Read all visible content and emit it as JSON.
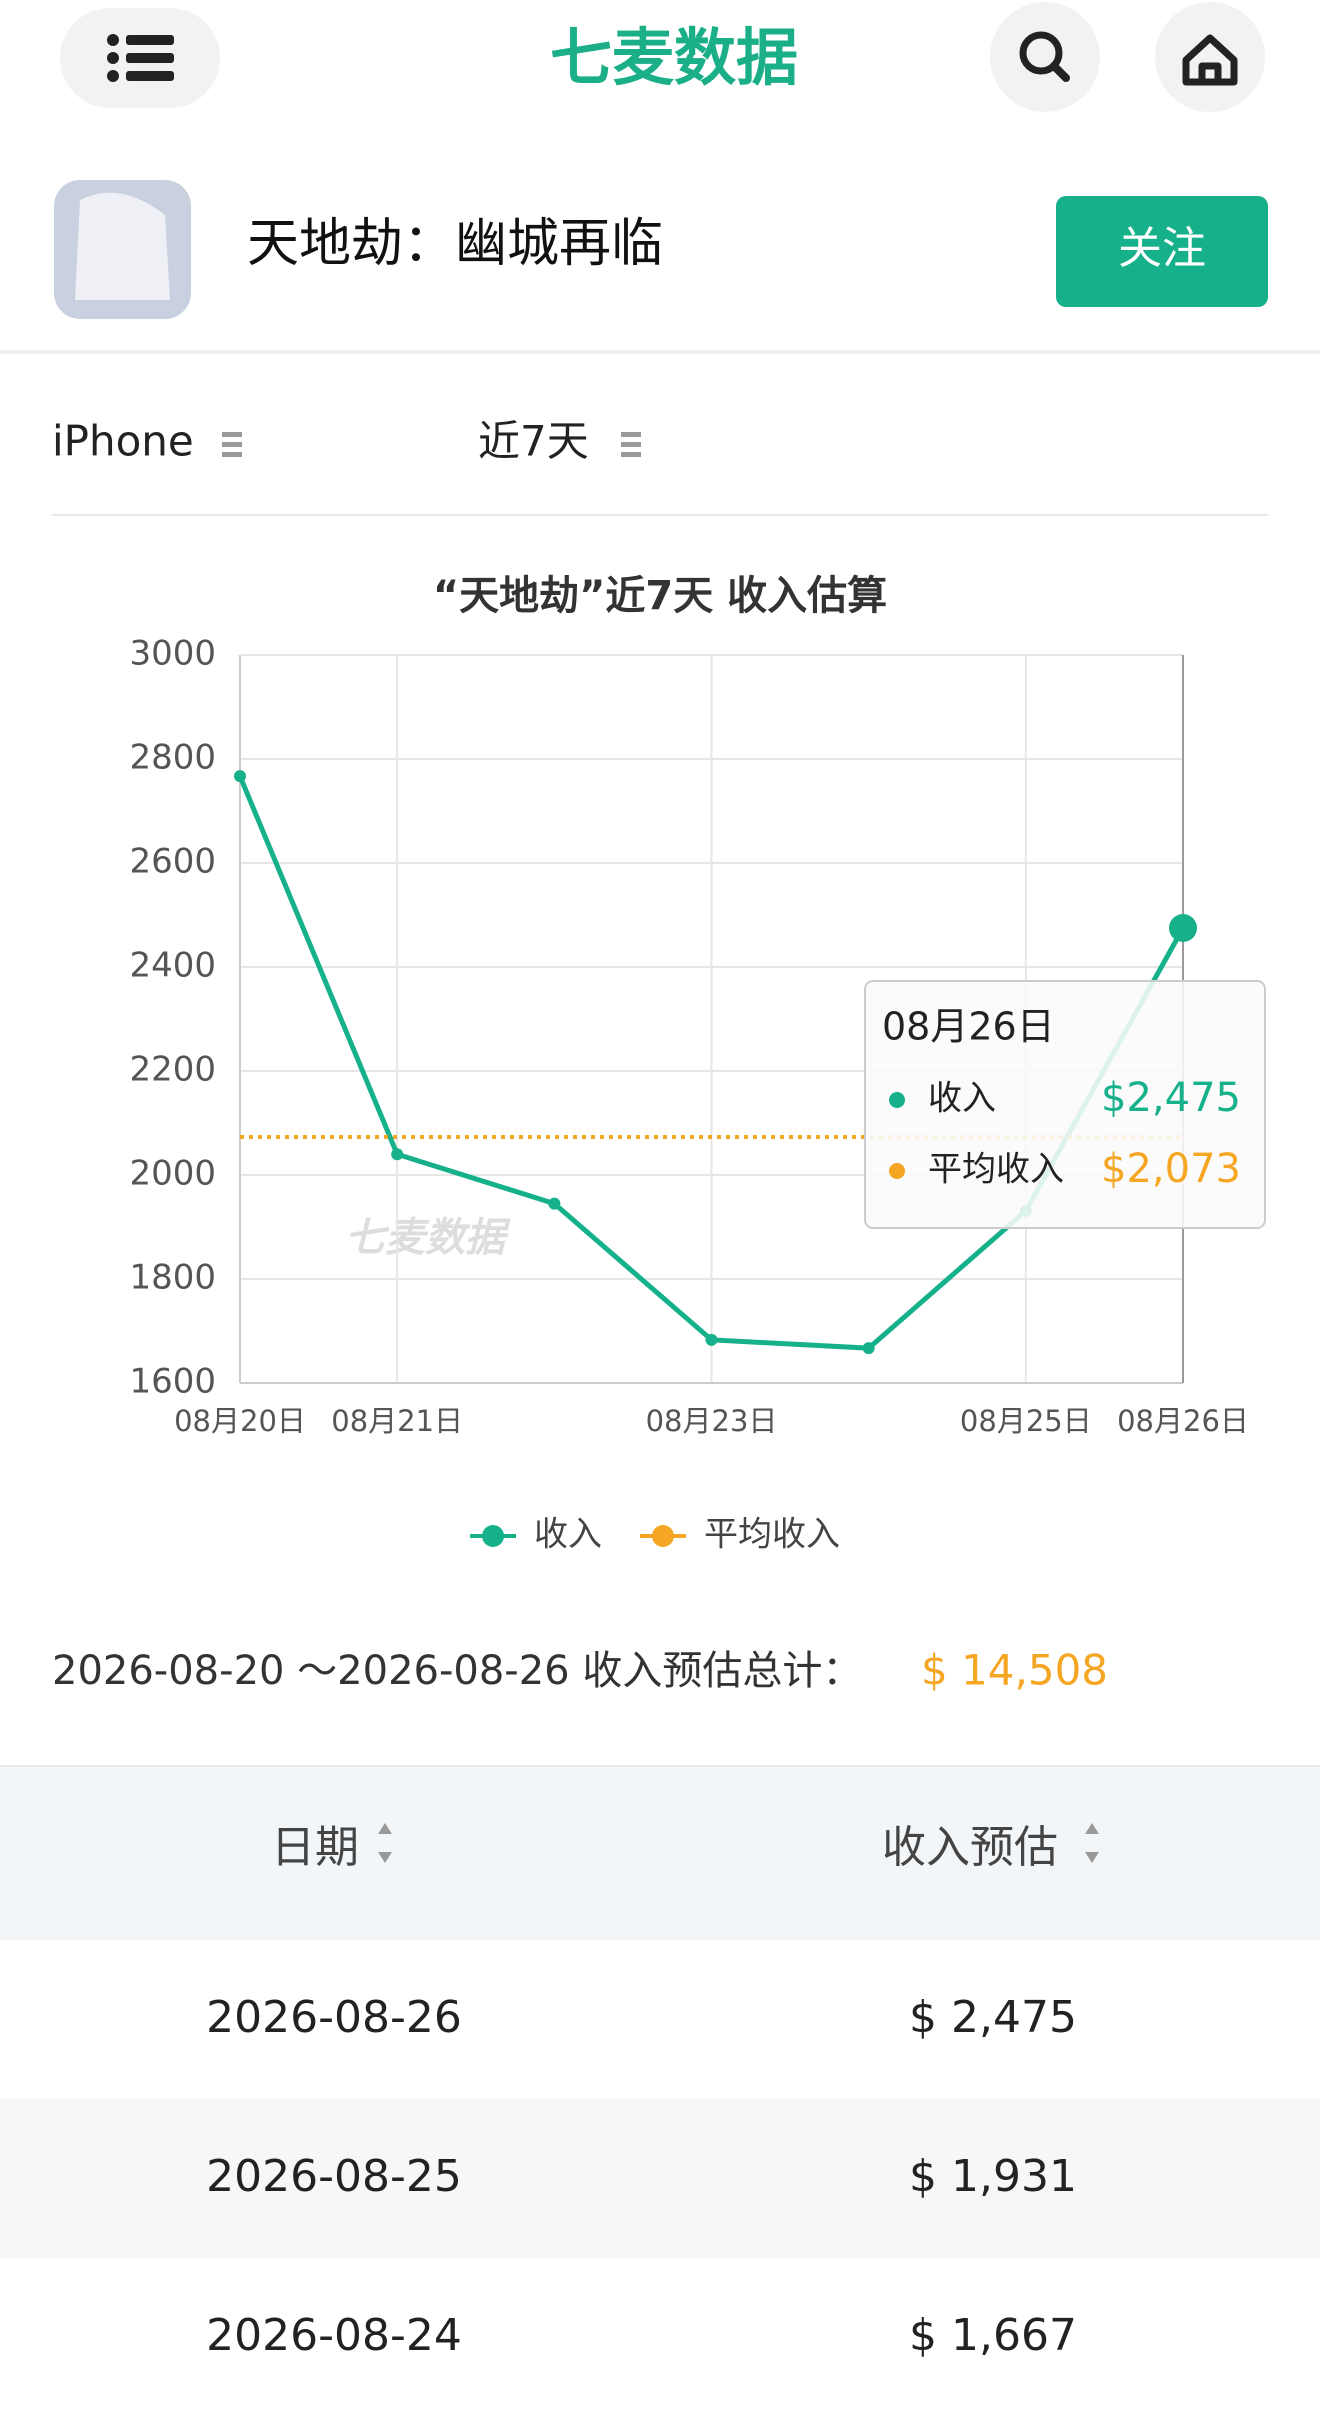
{
  "header": {
    "logo": "七麦数据"
  },
  "app": {
    "name": "天地劫：幽城再临",
    "follow_button": "关注"
  },
  "filters": {
    "device": "iPhone",
    "period": "近7天"
  },
  "chart_data": {
    "type": "line",
    "title": "“天地劫”近7天 收入估算",
    "watermark": "七麦数据",
    "categories": [
      "08月20日",
      "08月21日",
      null,
      "08月23日",
      null,
      "08月25日",
      "08月26日"
    ],
    "series": [
      {
        "name": "收入",
        "color": "#16b18b",
        "values": [
          2767,
          2040,
          1945,
          1683,
          1667,
          1931,
          2475
        ]
      },
      {
        "name": "平均收入",
        "color": "#f5a623",
        "dashed": true,
        "values": [
          2073,
          2073,
          2073,
          2073,
          2073,
          2073,
          2073
        ]
      }
    ],
    "ylim": [
      1600,
      3000
    ],
    "yticks": [
      1600,
      1800,
      2000,
      2200,
      2400,
      2600,
      2800,
      3000
    ],
    "grid": true,
    "tooltip": {
      "category": "08月26日",
      "values": [
        {
          "value": 2475,
          "label": "$2,475"
        },
        {
          "value": 2073,
          "label": "$2,073"
        }
      ]
    }
  },
  "summary": {
    "label": "2026-08-20 ～2026-08-26 收入预估总计：",
    "total": {
      "value": 14508,
      "label": "$ 14,508"
    }
  },
  "table": {
    "headers": [
      "日期",
      "收入预估"
    ],
    "rows": [
      [
        "2026-08-26",
        "$ 2,475"
      ],
      [
        "2026-08-25",
        "$ 1,931"
      ],
      [
        "2026-08-24",
        "$ 1,667"
      ]
    ]
  }
}
